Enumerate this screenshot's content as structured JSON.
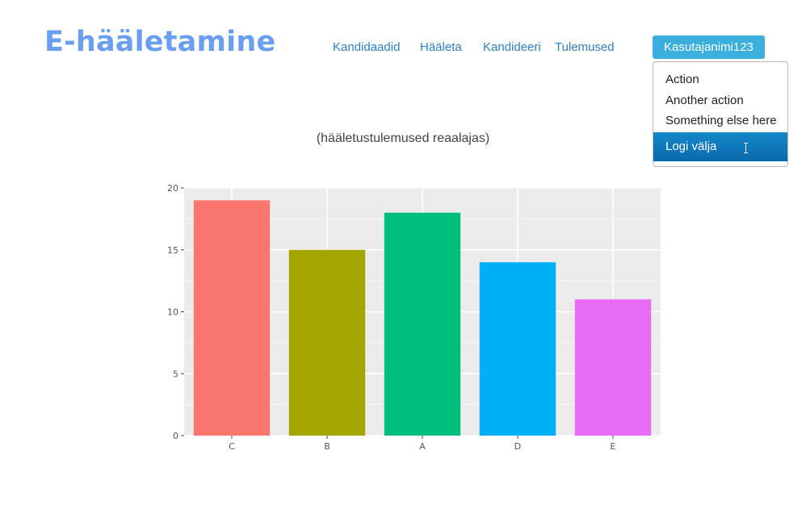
{
  "brand": {
    "title": "E-hääletamine"
  },
  "nav": {
    "items": [
      {
        "label": "Kandidaadid"
      },
      {
        "label": "Hääleta"
      },
      {
        "label": "Kandideeri"
      },
      {
        "label": "Tulemused"
      }
    ]
  },
  "user_menu": {
    "button_label": "Kasutajanimi123",
    "items": [
      {
        "label": "Action"
      },
      {
        "label": "Another action"
      },
      {
        "label": "Something else here"
      },
      {
        "label": "Logi välja"
      }
    ]
  },
  "colors": {
    "brand": "#6a9ef1",
    "nav_link": "#2e7fc3",
    "button": "#3aaedc",
    "active_item": "#0f78bc",
    "plot_background": "#ebebeb"
  },
  "chart_data": {
    "type": "bar",
    "title": "(hääletustulemused reaalajas)",
    "categories": [
      "C",
      "B",
      "A",
      "D",
      "E"
    ],
    "values": [
      19,
      15,
      18,
      14,
      11
    ],
    "colors": [
      "#f8766d",
      "#a3a500",
      "#00bf7d",
      "#00b0f6",
      "#e76bf3"
    ],
    "yticks": [
      0,
      5,
      10,
      15,
      20
    ],
    "ylim": [
      0,
      20
    ],
    "grid": true,
    "legend": "none"
  }
}
